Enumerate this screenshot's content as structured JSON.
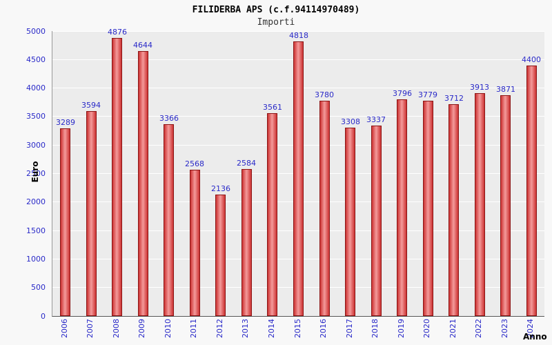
{
  "chart_data": {
    "type": "bar",
    "title": "FILIDERBA APS (c.f.94114970489)",
    "subtitle": "Importi",
    "xlabel": "Anno",
    "ylabel": "Euro",
    "categories": [
      "2006",
      "2007",
      "2008",
      "2009",
      "2010",
      "2011",
      "2012",
      "2013",
      "2014",
      "2015",
      "2016",
      "2017",
      "2018",
      "2019",
      "2020",
      "2021",
      "2022",
      "2023",
      "2024"
    ],
    "values": [
      3289,
      3594,
      4876,
      4644,
      3366,
      2568,
      2136,
      2584,
      3561,
      4818,
      3780,
      3308,
      3337,
      3796,
      3779,
      3712,
      3913,
      3871,
      4400
    ],
    "y_ticks": [
      0,
      500,
      1000,
      1500,
      2000,
      2500,
      3000,
      3500,
      4000,
      4500,
      5000
    ],
    "ylim": [
      0,
      5000
    ],
    "grid": true,
    "legend_position": "none",
    "colors": {
      "bar_fill_dark": "#cc3333",
      "bar_fill_light": "#f49a9a",
      "bar_border": "#8b1414",
      "tick_label": "#2929c8",
      "value_label": "#2929c8",
      "plot_background": "#ececec",
      "grid_line": "#ffffff"
    }
  }
}
